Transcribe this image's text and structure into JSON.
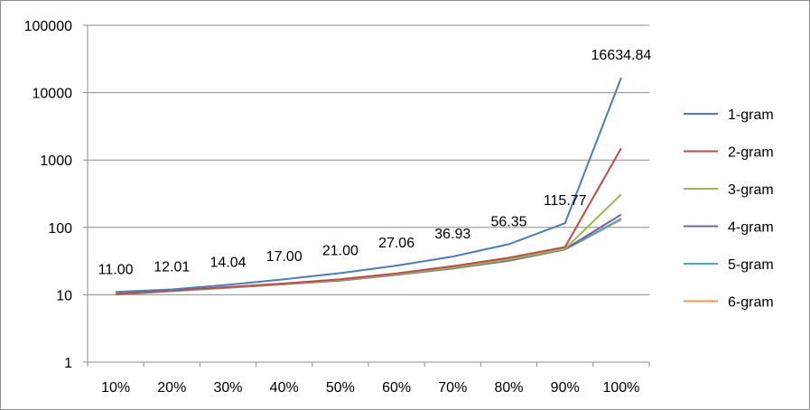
{
  "chart_data": {
    "type": "line",
    "title": "",
    "xlabel": "",
    "ylabel": "",
    "y_scale": "log",
    "ylim": [
      1,
      100000
    ],
    "y_ticks": [
      "1",
      "10",
      "100",
      "1000",
      "10000",
      "100000"
    ],
    "categories": [
      "10%",
      "20%",
      "30%",
      "40%",
      "50%",
      "60%",
      "70%",
      "80%",
      "90%",
      "100%"
    ],
    "grid": "horizontal",
    "legend_position": "right",
    "series": [
      {
        "name": "1-gram",
        "color": "#4a7ebb",
        "values": [
          11.0,
          12.01,
          14.04,
          17.0,
          21.0,
          27.06,
          36.93,
          56.35,
          115.77,
          16634.84
        ]
      },
      {
        "name": "2-gram",
        "color": "#be4b48",
        "values": [
          10.3,
          11.6,
          13.0,
          14.7,
          17.0,
          20.8,
          26.5,
          35.5,
          51.0,
          1500
        ]
      },
      {
        "name": "3-gram",
        "color": "#98b954",
        "values": [
          10.2,
          11.5,
          12.9,
          14.5,
          16.6,
          20.2,
          25.3,
          33.5,
          48.0,
          310
        ]
      },
      {
        "name": "4-gram",
        "color": "#7d60a0",
        "values": [
          10.1,
          11.4,
          12.8,
          14.4,
          16.4,
          19.9,
          24.8,
          32.5,
          47.5,
          155
        ]
      },
      {
        "name": "5-gram",
        "color": "#46aac5",
        "values": [
          10.1,
          11.4,
          12.8,
          14.3,
          16.3,
          19.8,
          24.6,
          32.0,
          47.0,
          135
        ]
      },
      {
        "name": "6-gram",
        "color": "#f79646",
        "values": [
          10.0,
          11.3,
          12.7,
          14.3,
          16.2,
          19.7,
          24.5,
          31.8,
          46.8,
          130
        ]
      }
    ],
    "data_labels": [
      "11.00",
      "12.01",
      "14.04",
      "17.00",
      "21.00",
      "27.06",
      "36.93",
      "56.35",
      "115.77",
      "16634.84"
    ]
  }
}
